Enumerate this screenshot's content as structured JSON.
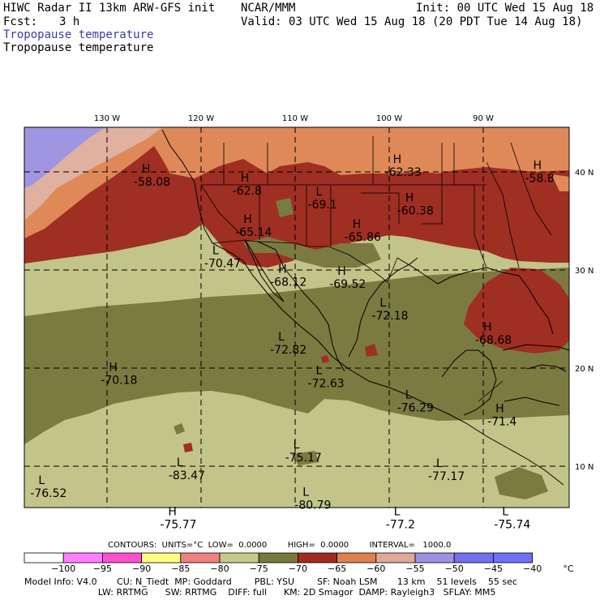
{
  "header": {
    "title": "HIWC Radar II 13km ARW-GFS init",
    "org": "NCAR/MMM",
    "init": "Init: 00 UTC Wed 15 Aug 18",
    "fcst_label": "Fcst:",
    "fcst_value": "3 h",
    "valid": "Valid: 03 UTC Wed 15 Aug 18 (20 PDT Tue 14 Aug 18)",
    "field_line1": "Tropopause temperature",
    "field_line2": "Tropopause temperature"
  },
  "map": {
    "lon_labels": [
      "130 W",
      "120 W",
      "110 W",
      "100 W",
      "90 W"
    ],
    "lat_labels": [
      "40 N",
      "30 N",
      "20 N",
      "10 N"
    ],
    "extrema": [
      {
        "type": "H",
        "value": "-58.08",
        "lon": -126.3,
        "lat": 39.9
      },
      {
        "type": "H",
        "value": "-62.8",
        "lon": -115.8,
        "lat": 39.0
      },
      {
        "type": "L",
        "value": "-69.1",
        "lon": -107.8,
        "lat": 37.6
      },
      {
        "type": "H",
        "value": "-62.33",
        "lon": -99.6,
        "lat": 40.9
      },
      {
        "type": "H",
        "value": "-60.38",
        "lon": -98.3,
        "lat": 37.0
      },
      {
        "type": "H",
        "value": "-58.8",
        "lon": -84.7,
        "lat": 40.3
      },
      {
        "type": "H",
        "value": "-65.14",
        "lon": -115.5,
        "lat": 34.8
      },
      {
        "type": "H",
        "value": "-65.86",
        "lon": -103.9,
        "lat": 34.3
      },
      {
        "type": "L",
        "value": "-70.47",
        "lon": -118.8,
        "lat": 31.6
      },
      {
        "type": "H",
        "value": "-68.12",
        "lon": -111.8,
        "lat": 29.7
      },
      {
        "type": "H",
        "value": "-69.52",
        "lon": -105.5,
        "lat": 29.5
      },
      {
        "type": "L",
        "value": "-72.18",
        "lon": -101.0,
        "lat": 26.3
      },
      {
        "type": "H",
        "value": "-68.68",
        "lon": -90.0,
        "lat": 23.8
      },
      {
        "type": "L",
        "value": "-72.82",
        "lon": -111.8,
        "lat": 22.8
      },
      {
        "type": "H",
        "value": "-70.18",
        "lon": -129.8,
        "lat": 19.7
      },
      {
        "type": "L",
        "value": "-72.63",
        "lon": -107.8,
        "lat": 19.4
      },
      {
        "type": "L",
        "value": "-76.29",
        "lon": -98.3,
        "lat": 16.9
      },
      {
        "type": "H",
        "value": "-71.4",
        "lon": -88.7,
        "lat": 15.5
      },
      {
        "type": "L",
        "value": "-75.17",
        "lon": -110.2,
        "lat": 11.8
      },
      {
        "type": "L",
        "value": "-83.47",
        "lon": -122.6,
        "lat": 10.0
      },
      {
        "type": "L",
        "value": "-77.17",
        "lon": -95.0,
        "lat": 9.9
      },
      {
        "type": "L",
        "value": "-76.52",
        "lon": -137.3,
        "lat": 8.2
      },
      {
        "type": "L",
        "value": "-80.79",
        "lon": -109.2,
        "lat": 7.0
      },
      {
        "type": "H",
        "value": "-75.77",
        "lon": -123.5,
        "lat": 5.0
      },
      {
        "type": "L",
        "value": "-77.2",
        "lon": -99.5,
        "lat": 5.0
      },
      {
        "type": "L",
        "value": "-75.74",
        "lon": -88.0,
        "lat": 5.0
      }
    ]
  },
  "contours": {
    "text": "CONTOURS:  UNITS=°C  LOW=  0.0000        HIGH=  0.0000        INTERVAL=   1000.0"
  },
  "colorbar": {
    "labels": [
      "−100",
      "−95",
      "−90",
      "−85",
      "−80",
      "−75",
      "−70",
      "−65",
      "−60",
      "−55",
      "−50",
      "−45",
      "−40"
    ],
    "unit": "°C",
    "colors": [
      "#ffffff",
      "#ff80ff",
      "#ff50d0",
      "#ffff80",
      "#f08080",
      "#c8c888",
      "#787838",
      "#a02c20",
      "#e08050",
      "#e0a898",
      "#9f90e0",
      "#7070ee",
      "#6f6ff8"
    ]
  },
  "field_colors": {
    "pale_olive": "#c3c489",
    "olive": "#7b7a41",
    "dark_red": "#9f2e23",
    "orange": "#df8959",
    "pink": "#e0b0a0",
    "lavender": "#a095e0",
    "line": "#000000"
  },
  "model_info": {
    "line1": "Model Info: V4.0       CU: N_Tiedt  MP: Goddard        PBL: YSU        SF: Noah LSM       13 km    51 levels    55 sec",
    "line2": "                          LW: RRTMG      SW: RRTMG    DIFF: full      KM: 2D Smagor  DAMP: Rayleigh3   SFLAY: MM5"
  }
}
